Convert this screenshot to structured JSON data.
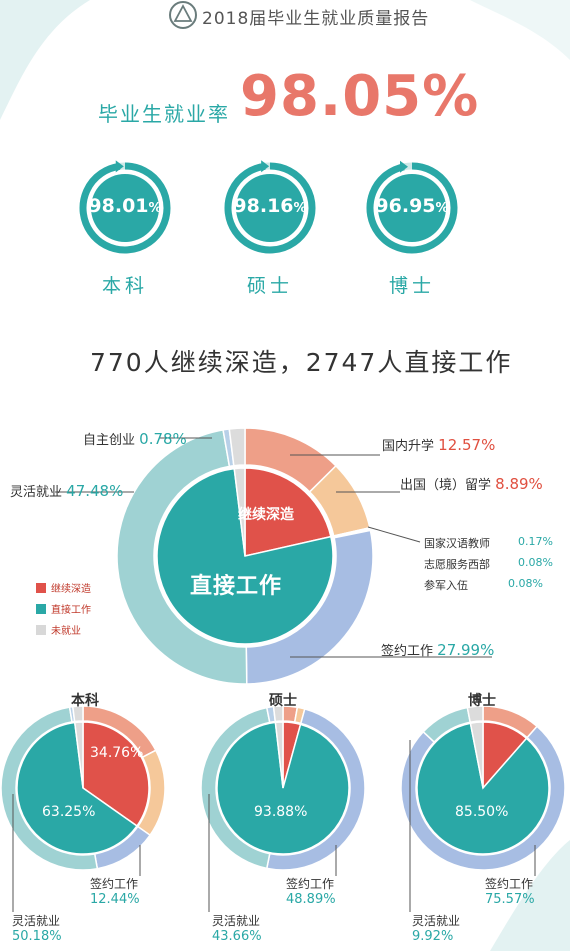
{
  "header": {
    "title": "2018届毕业生就业质量报告",
    "logo_icon": "university-seal-icon"
  },
  "overall": {
    "label": "毕业生就业率",
    "value": "98.05%"
  },
  "degree_rates": [
    {
      "label": "本科",
      "number": "98.01",
      "percent_sign": "%",
      "rate": 98.01
    },
    {
      "label": "硕士",
      "number": "98.16",
      "percent_sign": "%",
      "rate": 98.16
    },
    {
      "label": "博士",
      "number": "96.95",
      "percent_sign": "%",
      "rate": 96.95
    }
  ],
  "headline": "770人继续深造，2747人直接工作",
  "main_chart": {
    "inner_labels": {
      "study": "继续深造",
      "work": "直接工作"
    },
    "annotations": {
      "self_employed": {
        "label": "自主创业",
        "value": "0.78%"
      },
      "flexible": {
        "label": "灵活就业",
        "value": "47.48%"
      },
      "domestic": {
        "label": "国内升学",
        "value": "12.57%"
      },
      "abroad": {
        "label": "出国（境）留学",
        "value": "8.89%"
      },
      "contract": {
        "label": "签约工作",
        "value": "27.99%"
      }
    },
    "small_annotations": [
      {
        "label": "国家汉语教师",
        "value": "0.17%"
      },
      {
        "label": "志愿服务西部",
        "value": "0.08%"
      },
      {
        "label": "参军入伍",
        "value": "0.08%"
      }
    ]
  },
  "legend": [
    {
      "label": "继续深造",
      "color": "#e0524a"
    },
    {
      "label": "直接工作",
      "color": "#2aa8a6"
    },
    {
      "label": "未就业",
      "color": "#d8d8d8"
    }
  ],
  "colors": {
    "teal": "#2aa8a6",
    "red": "#e0524a",
    "salmon": "#ee9f88",
    "orange": "#f5c89a",
    "blue": "#a7bde3",
    "light_teal": "#9fd2d3",
    "light_blue": "#b8d0e8",
    "grey": "#dcdcdc",
    "accent": "#e8776a"
  },
  "chart_data": [
    {
      "type": "pie",
      "inner": [
        {
          "name": "继续深造",
          "value": 21.46
        },
        {
          "name": "直接工作",
          "value": 76.59
        },
        {
          "name": "未就业",
          "value": 1.95
        }
      ],
      "outer": [
        {
          "name": "国内升学",
          "value": 12.57
        },
        {
          "name": "出国（境）留学",
          "value": 8.89
        },
        {
          "name": "国家汉语教师",
          "value": 0.17
        },
        {
          "name": "志愿服务西部",
          "value": 0.08
        },
        {
          "name": "参军入伍",
          "value": 0.08
        },
        {
          "name": "签约工作",
          "value": 27.99
        },
        {
          "name": "灵活就业",
          "value": 47.48
        },
        {
          "name": "自主创业",
          "value": 0.78
        },
        {
          "name": "未就业",
          "value": 1.96
        }
      ]
    },
    {
      "type": "pie",
      "title": "本科",
      "inner": [
        {
          "name": "继续深造",
          "value": 34.76
        },
        {
          "name": "直接工作",
          "value": 63.25
        },
        {
          "name": "未就业",
          "value": 1.99
        }
      ],
      "outer": [
        {
          "name": "国内升学",
          "value": 17.4
        },
        {
          "name": "出国（境）留学",
          "value": 17.36
        },
        {
          "name": "签约工作",
          "value": 12.44
        },
        {
          "name": "灵活就业",
          "value": 50.18
        },
        {
          "name": "自主创业",
          "value": 0.63
        },
        {
          "name": "未就业",
          "value": 1.99
        }
      ],
      "labels": {
        "study": "34.76%",
        "work": "63.25%",
        "contract": "12.44%",
        "flexible": "50.18%"
      }
    },
    {
      "type": "pie",
      "title": "硕士",
      "inner": [
        {
          "name": "继续深造",
          "value": 4.28
        },
        {
          "name": "直接工作",
          "value": 93.88
        },
        {
          "name": "未就业",
          "value": 1.84
        }
      ],
      "outer": [
        {
          "name": "国内升学",
          "value": 2.8
        },
        {
          "name": "出国（境）留学",
          "value": 1.48
        },
        {
          "name": "签约工作",
          "value": 48.89
        },
        {
          "name": "灵活就业",
          "value": 43.66
        },
        {
          "name": "自主创业",
          "value": 1.33
        },
        {
          "name": "未就业",
          "value": 1.84
        }
      ],
      "labels": {
        "work": "93.88%",
        "contract": "48.89%",
        "flexible": "43.66%"
      }
    },
    {
      "type": "pie",
      "title": "博士",
      "inner": [
        {
          "name": "继续深造",
          "value": 11.45
        },
        {
          "name": "直接工作",
          "value": 85.5
        },
        {
          "name": "未就业",
          "value": 3.05
        }
      ],
      "outer": [
        {
          "name": "国内升学",
          "value": 11.45
        },
        {
          "name": "签约工作",
          "value": 75.57
        },
        {
          "name": "灵活就业",
          "value": 9.92
        },
        {
          "name": "未就业",
          "value": 3.06
        }
      ],
      "labels": {
        "work": "85.50%",
        "contract": "75.57%",
        "flexible": "9.92%"
      }
    }
  ]
}
